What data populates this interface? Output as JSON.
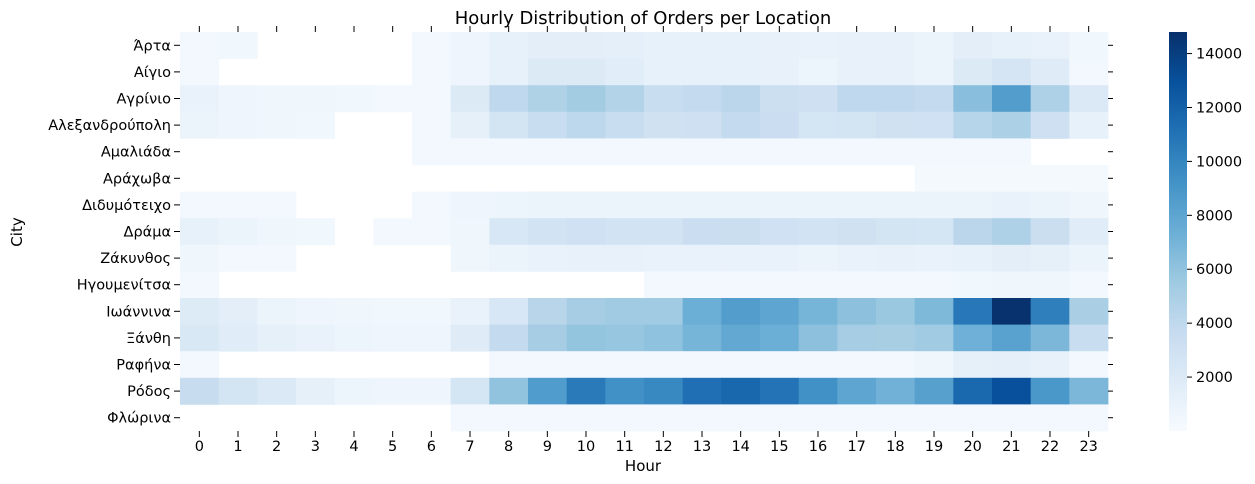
{
  "chart_data": {
    "type": "heatmap",
    "title": "Hourly Distribution of Orders per Location",
    "xlabel": "Hour",
    "ylabel": "City",
    "x": [
      "0",
      "1",
      "2",
      "3",
      "4",
      "5",
      "6",
      "7",
      "8",
      "9",
      "10",
      "11",
      "12",
      "13",
      "14",
      "15",
      "16",
      "17",
      "18",
      "19",
      "20",
      "21",
      "22",
      "23"
    ],
    "y": [
      "Άρτα",
      "Αίγιο",
      "Αγρίνιο",
      "Αλεξανδρούπολη",
      "Αμαλιάδα",
      "Αράχωβα",
      "Διδυμότειχο",
      "Δράμα",
      "Ζάκυνθος",
      "Ηγουμενίτσα",
      "Ιωάννινα",
      "Ξάνθη",
      "Ραφήνα",
      "Ρόδος",
      "Φλώρινα"
    ],
    "values": [
      [
        400,
        500,
        null,
        null,
        null,
        null,
        300,
        700,
        1200,
        1500,
        1500,
        1400,
        1200,
        1200,
        1200,
        1100,
        1000,
        1100,
        1100,
        900,
        1500,
        1200,
        1000,
        500
      ],
      [
        300,
        null,
        null,
        null,
        null,
        null,
        300,
        700,
        1200,
        2000,
        2000,
        1600,
        1200,
        1200,
        1200,
        1100,
        800,
        1100,
        1100,
        900,
        2000,
        2500,
        1800,
        300
      ],
      [
        1000,
        700,
        600,
        600,
        500,
        400,
        400,
        2000,
        4000,
        4700,
        5300,
        4600,
        3500,
        3800,
        4200,
        3200,
        3100,
        4000,
        4000,
        3800,
        6300,
        8500,
        4800,
        2100
      ],
      [
        900,
        700,
        600,
        500,
        null,
        null,
        400,
        1300,
        2700,
        3500,
        4100,
        3500,
        2900,
        3100,
        3800,
        3300,
        2600,
        2700,
        2900,
        3000,
        4400,
        4900,
        3100,
        1200
      ],
      [
        null,
        null,
        null,
        null,
        null,
        null,
        300,
        300,
        300,
        400,
        400,
        400,
        400,
        400,
        400,
        400,
        400,
        400,
        400,
        400,
        400,
        400,
        null,
        null
      ],
      [
        null,
        null,
        null,
        null,
        null,
        null,
        null,
        null,
        null,
        null,
        null,
        null,
        null,
        null,
        null,
        null,
        null,
        null,
        null,
        200,
        200,
        200,
        200,
        200
      ],
      [
        300,
        300,
        300,
        null,
        null,
        null,
        400,
        700,
        800,
        900,
        900,
        900,
        900,
        900,
        900,
        900,
        900,
        900,
        900,
        900,
        900,
        1000,
        900,
        600
      ],
      [
        1200,
        900,
        600,
        500,
        null,
        400,
        400,
        600,
        2300,
        2800,
        3000,
        2800,
        2800,
        3300,
        3400,
        3000,
        2800,
        2900,
        2700,
        2600,
        4200,
        4800,
        3400,
        1700
      ],
      [
        600,
        400,
        400,
        null,
        null,
        null,
        null,
        600,
        900,
        1000,
        1100,
        1100,
        1000,
        1000,
        1000,
        1000,
        900,
        1000,
        1100,
        1000,
        1200,
        1500,
        1300,
        900
      ],
      [
        300,
        null,
        null,
        null,
        null,
        null,
        null,
        null,
        null,
        null,
        null,
        null,
        300,
        300,
        300,
        300,
        300,
        300,
        300,
        300,
        500,
        600,
        600,
        400
      ],
      [
        1900,
        1500,
        900,
        700,
        600,
        500,
        500,
        1000,
        2300,
        4300,
        5200,
        5400,
        5400,
        7400,
        8500,
        8000,
        7000,
        6200,
        5700,
        6700,
        10700,
        14700,
        10300,
        5000
      ],
      [
        2200,
        1700,
        1300,
        1000,
        800,
        700,
        700,
        1800,
        3800,
        5200,
        5900,
        5800,
        6100,
        7000,
        7800,
        7400,
        6200,
        5200,
        5100,
        5400,
        7300,
        8200,
        6800,
        3500
      ],
      [
        300,
        null,
        null,
        null,
        null,
        null,
        null,
        null,
        400,
        400,
        400,
        400,
        400,
        400,
        400,
        400,
        400,
        400,
        400,
        600,
        1300,
        1400,
        1100,
        400
      ],
      [
        3600,
        2700,
        2100,
        1300,
        800,
        700,
        700,
        2600,
        6000,
        8600,
        10600,
        9300,
        9800,
        11200,
        11700,
        11000,
        9300,
        8000,
        7200,
        8300,
        11600,
        13000,
        8900,
        6800
      ],
      [
        null,
        null,
        null,
        null,
        null,
        null,
        null,
        300,
        400,
        400,
        400,
        400,
        400,
        400,
        400,
        400,
        400,
        400,
        400,
        400,
        400,
        400,
        400,
        300
      ]
    ],
    "colorbar": {
      "colormap": "Blues",
      "range": [
        0,
        14800
      ],
      "ticks": [
        2000,
        4000,
        6000,
        8000,
        10000,
        12000,
        14000
      ],
      "tick_labels": [
        "2000",
        "4000",
        "6000",
        "8000",
        "10000",
        "12000",
        "14000"
      ]
    },
    "grid": false,
    "legend": "colorbar-right"
  }
}
